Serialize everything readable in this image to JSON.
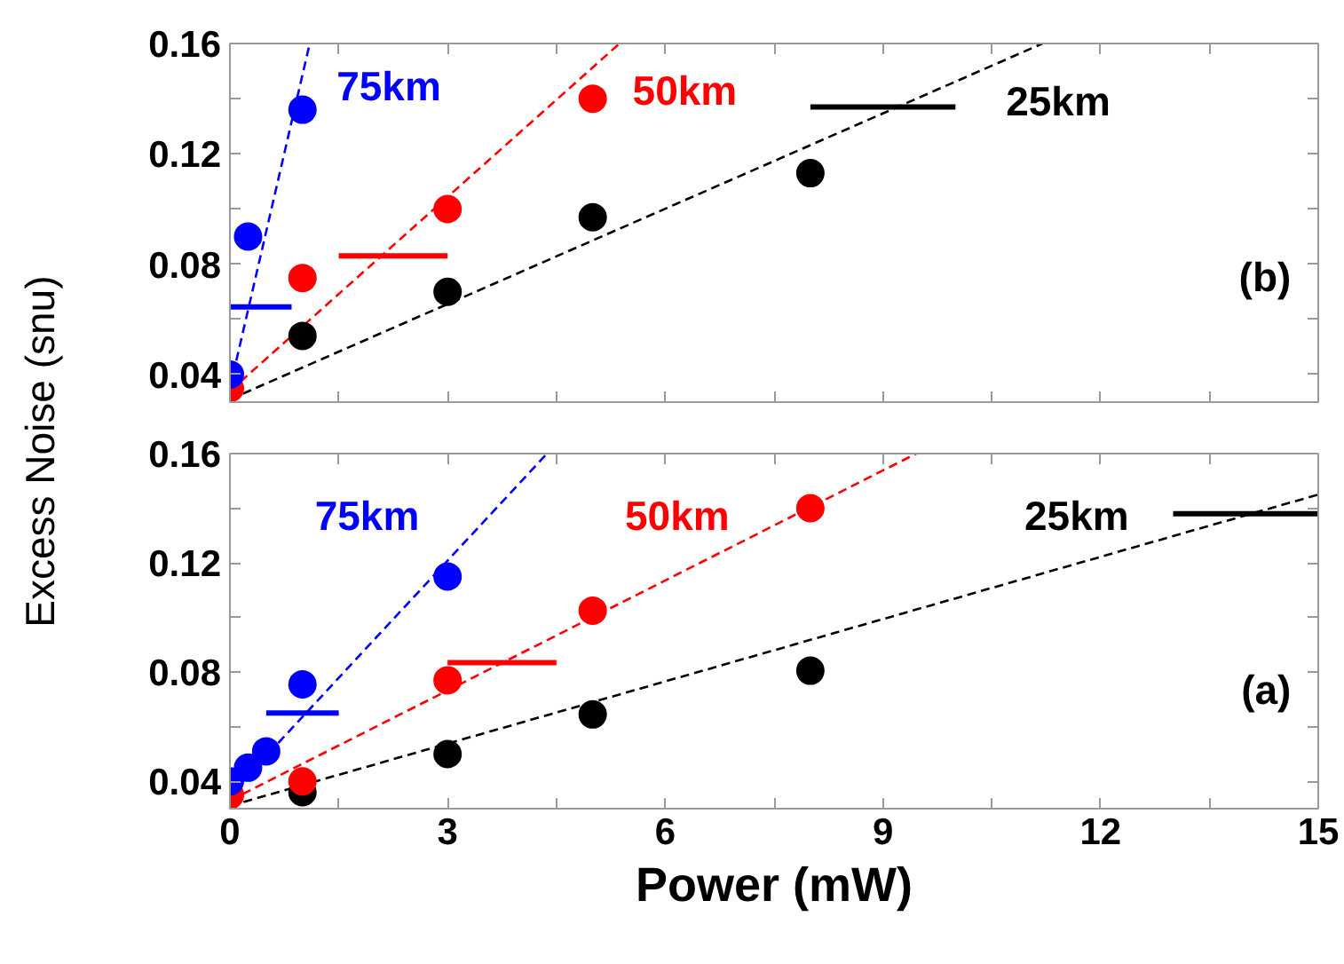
{
  "chart_data": [
    {
      "type": "scatter",
      "ylabel": "Excess Noise (snu)",
      "xlim": [
        0,
        15
      ],
      "ylim": [
        0.03,
        0.16
      ],
      "xticks": [
        0,
        {
          "value": 1.5,
          "label": null
        },
        3,
        {
          "value": 4.5,
          "label": null
        },
        6,
        {
          "value": 7.5,
          "label": null
        },
        9,
        {
          "value": 10.5,
          "label": null
        },
        12,
        {
          "value": 13.5,
          "label": null
        },
        15
      ],
      "yticks": [
        0.04,
        {
          "value": 0.06,
          "label": null
        },
        0.08,
        {
          "value": 0.1,
          "label": null
        },
        0.12,
        {
          "value": 0.14,
          "label": null
        },
        0.16
      ],
      "tick_labels": "y",
      "marker": "circle",
      "series": [
        {
          "color": "#0000ff",
          "x": [
            0,
            0.25,
            1
          ],
          "values": [
            0.04,
            0.09,
            0.136
          ]
        },
        {
          "color": "#ff0000",
          "x": [
            0,
            1,
            3,
            5
          ],
          "values": [
            0.035,
            0.075,
            0.1,
            0.14
          ]
        },
        {
          "color": "#000000",
          "x": [
            1,
            3,
            5,
            8
          ],
          "values": [
            0.054,
            0.07,
            0.097,
            0.113
          ]
        },
        {
          "type": "line",
          "color": "#0000ff",
          "line_style": "dashed",
          "marker": "none",
          "x": [
            0,
            1.1
          ],
          "values": [
            0.035,
            0.16
          ]
        },
        {
          "type": "line",
          "color": "#ff0000",
          "line_style": "dashed",
          "marker": "none",
          "x": [
            0,
            5.37
          ],
          "values": [
            0.034,
            0.16
          ]
        },
        {
          "type": "line",
          "color": "#000000",
          "line_style": "dashed",
          "marker": "none",
          "x": [
            0,
            11.2
          ],
          "values": [
            0.031,
            0.16
          ]
        },
        {
          "type": "line",
          "color": "#0000ff",
          "line_style": "solid",
          "marker": "none",
          "x": [
            0,
            0.85
          ],
          "values": [
            0.0645,
            0.0645
          ]
        },
        {
          "type": "line",
          "color": "#ff0000",
          "line_style": "solid",
          "marker": "none",
          "x": [
            1.5,
            3
          ],
          "values": [
            0.083,
            0.083
          ]
        },
        {
          "type": "line",
          "color": "#000000",
          "line_style": "solid",
          "marker": "none",
          "x": [
            8,
            10
          ],
          "values": [
            0.137,
            0.137
          ]
        }
      ],
      "annotations": [
        "75km",
        "50km",
        "25km",
        "(b)"
      ]
    },
    {
      "type": "scatter",
      "xlabel": "Power (mW)",
      "xlim": [
        0,
        15
      ],
      "ylim": [
        0.03,
        0.16
      ],
      "xticks": [
        0,
        {
          "value": 1.5,
          "label": null
        },
        3,
        {
          "value": 4.5,
          "label": null
        },
        6,
        {
          "value": 7.5,
          "label": null
        },
        9,
        {
          "value": 10.5,
          "label": null
        },
        12,
        {
          "value": 13.5,
          "label": null
        },
        15
      ],
      "yticks": [
        0.04,
        {
          "value": 0.06,
          "label": null
        },
        0.08,
        {
          "value": 0.1,
          "label": null
        },
        0.12,
        {
          "value": 0.14,
          "label": null
        },
        0.16
      ],
      "marker": "circle",
      "series": [
        {
          "color": "#0000ff",
          "x": [
            0,
            0.25,
            0.5,
            1,
            3
          ],
          "values": [
            0.04,
            0.045,
            0.051,
            0.0755,
            0.115
          ]
        },
        {
          "color": "#ff0000",
          "x": [
            0,
            1,
            3,
            5,
            8
          ],
          "values": [
            0.035,
            0.04,
            0.077,
            0.1025,
            0.14
          ]
        },
        {
          "color": "#000000",
          "x": [
            1,
            3,
            5,
            8
          ],
          "values": [
            0.036,
            0.05,
            0.0645,
            0.0805
          ]
        },
        {
          "type": "line",
          "color": "#0000ff",
          "line_style": "dashed",
          "marker": "none",
          "x": [
            0,
            4.37
          ],
          "values": [
            0.035,
            0.16
          ]
        },
        {
          "type": "line",
          "color": "#ff0000",
          "line_style": "dashed",
          "marker": "none",
          "x": [
            0,
            9.46
          ],
          "values": [
            0.033,
            0.16
          ]
        },
        {
          "type": "line",
          "color": "#000000",
          "line_style": "dashed",
          "marker": "none",
          "x": [
            0,
            15
          ],
          "values": [
            0.031,
            0.145
          ]
        },
        {
          "type": "line",
          "color": "#0000ff",
          "line_style": "solid",
          "marker": "none",
          "x": [
            0.5,
            1.5
          ],
          "values": [
            0.065,
            0.065
          ]
        },
        {
          "type": "line",
          "color": "#ff0000",
          "line_style": "solid",
          "marker": "none",
          "x": [
            3,
            4.5
          ],
          "values": [
            0.0835,
            0.0835
          ]
        },
        {
          "type": "line",
          "color": "#000000",
          "line_style": "solid",
          "marker": "none",
          "x": [
            13,
            15
          ],
          "values": [
            0.138,
            0.138
          ]
        }
      ],
      "annotations": [
        "75km",
        "50km",
        "25km",
        "(a)"
      ]
    }
  ]
}
